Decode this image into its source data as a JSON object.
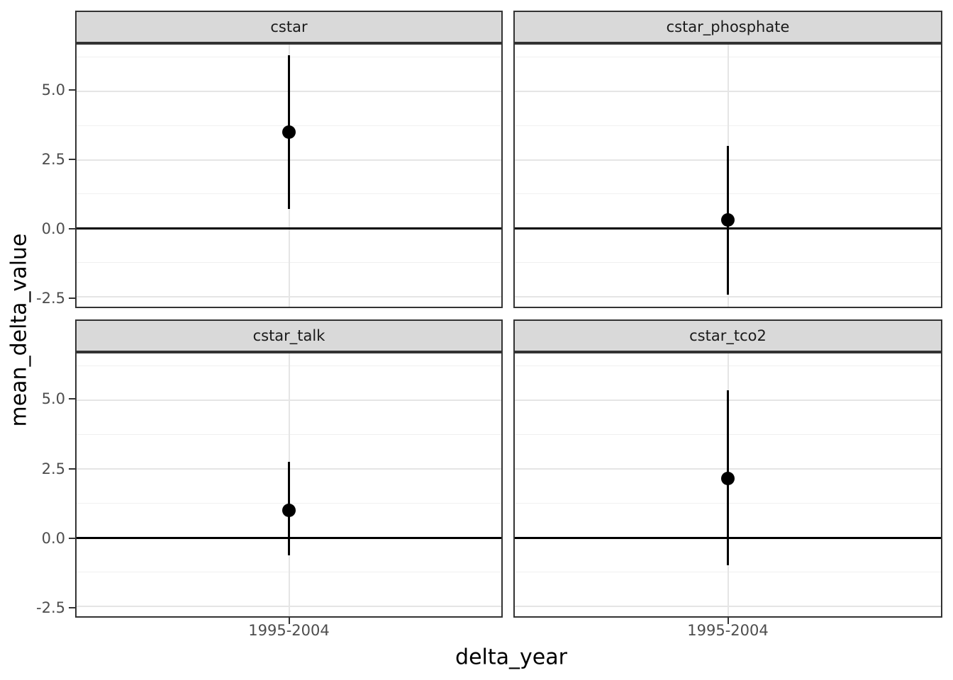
{
  "chart_data": {
    "type": "scatter",
    "subtype": "pointrange-facets",
    "title": "",
    "xlabel": "delta_year",
    "ylabel": "mean_delta_value",
    "x_categories": [
      "1995-2004"
    ],
    "y_axis": {
      "ticks": [
        {
          "v": 5.0,
          "label": "5.0"
        },
        {
          "v": 2.5,
          "label": "2.5"
        },
        {
          "v": 0.0,
          "label": "0.0"
        },
        {
          "v": -2.5,
          "label": "-2.5"
        }
      ],
      "minor": [
        6.25,
        3.75,
        1.25,
        -1.25
      ],
      "domain": [
        -2.85,
        6.69
      ]
    },
    "reference_line_y": 0,
    "grid": true,
    "legend_position": "none",
    "facets": [
      {
        "label": "cstar",
        "x": "1995-2004",
        "mean": 3.5,
        "lower": 0.7,
        "upper": 6.3
      },
      {
        "label": "cstar_phosphate",
        "x": "1995-2004",
        "mean": 0.3,
        "lower": -2.4,
        "upper": 3.0
      },
      {
        "label": "cstar_talk",
        "x": "1995-2004",
        "mean": 1.0,
        "lower": -0.65,
        "upper": 2.75
      },
      {
        "label": "cstar_tco2",
        "x": "1995-2004",
        "mean": 2.15,
        "lower": -1.0,
        "upper": 5.35
      }
    ],
    "colors": {
      "point": "#000000",
      "interval": "#000000",
      "reference_line": "#000000",
      "strip_bg": "#d9d9d9",
      "strip_text": "#1a1a1a",
      "panel_border": "#333333",
      "grid_major": "#e5e5e5",
      "grid_minor": "#f0f0f0",
      "tick_label": "#4d4d4d",
      "axis_title": "#000000",
      "background": "#ffffff"
    }
  }
}
